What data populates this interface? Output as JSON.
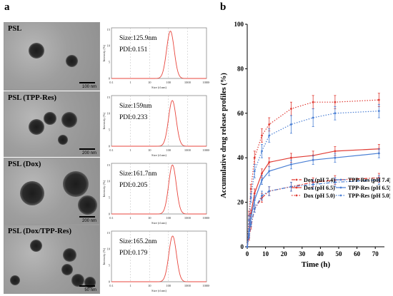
{
  "panel_a_label": "a",
  "panel_b_label": "b",
  "tem_images": [
    {
      "label": "PSL",
      "scale_bar": "100 nm"
    },
    {
      "label": "PSL (TPP-Res)",
      "scale_bar": "200 nm"
    },
    {
      "label": "PSL (Dox)",
      "scale_bar": "200 nm"
    },
    {
      "label": "PSL (Dox/TPP-Res)",
      "scale_bar": "50 nm"
    }
  ],
  "dls_common": {
    "ylabel": "Intensity (%)",
    "xlabel": "Size (d.nm)",
    "xticks": [
      "0.1",
      "1",
      "10",
      "100",
      "1000",
      "10000"
    ],
    "yticks": [
      "0",
      "5",
      "10",
      "15"
    ],
    "line_color": "#e8453c"
  },
  "chart_data": [
    {
      "type": "line",
      "size_text": "Size:125.9nm",
      "pdi_text": "PDI:0.151",
      "x_log": true,
      "peak_x": 125.9,
      "peak_y": 14.5,
      "log_sigma": 0.2,
      "ylim": [
        0,
        15.5
      ],
      "xlim": [
        0.1,
        10000
      ]
    },
    {
      "type": "line",
      "size_text": "Size:159nm",
      "pdi_text": "PDI:0.233",
      "x_log": true,
      "peak_x": 159,
      "peak_y": 14.0,
      "log_sigma": 0.2,
      "ylim": [
        0,
        15.5
      ],
      "xlim": [
        0.1,
        10000
      ]
    },
    {
      "type": "line",
      "size_text": "Size:161.7nm",
      "pdi_text": "PDI:0.205",
      "x_log": true,
      "peak_x": 161.7,
      "peak_y": 15.0,
      "log_sigma": 0.2,
      "ylim": [
        0,
        15.5
      ],
      "xlim": [
        0.1,
        10000
      ]
    },
    {
      "type": "line",
      "size_text": "Size:165.2nm",
      "pdi_text": "PDI:0.179",
      "x_log": true,
      "peak_x": 165.2,
      "peak_y": 14.0,
      "log_sigma": 0.2,
      "ylim": [
        0,
        15.5
      ],
      "xlim": [
        0.1,
        10000
      ]
    },
    {
      "type": "line",
      "xlabel": "Time (h)",
      "ylabel": "Accumulative drug release profiles (%)",
      "xlim": [
        0,
        75
      ],
      "ylim": [
        0,
        100
      ],
      "xticks": [
        0,
        10,
        20,
        30,
        40,
        50,
        60,
        70
      ],
      "yticks": [
        0,
        20,
        40,
        60,
        80,
        100
      ],
      "legend_position": "bottom-right",
      "x": [
        0,
        1,
        2,
        4,
        8,
        12,
        24,
        36,
        48,
        72
      ],
      "series": [
        {
          "name": "Dox (pH 7.4)",
          "color": "#e03a33",
          "dash": "dashdot",
          "values": [
            0,
            4,
            9,
            17,
            22,
            25,
            27,
            29,
            30,
            31
          ],
          "error": [
            0,
            1,
            1,
            1.5,
            2,
            2,
            2,
            2,
            2,
            2
          ]
        },
        {
          "name": "Dox (pH 6.5)",
          "color": "#e03a33",
          "dash": "solid",
          "values": [
            0,
            8,
            15,
            24,
            33,
            38,
            40,
            41,
            43,
            44
          ],
          "error": [
            0,
            1,
            1.5,
            2,
            2,
            2,
            2,
            2,
            2,
            2
          ]
        },
        {
          "name": "Dox (pH 5.0)",
          "color": "#e03a33",
          "dash": "dotted",
          "values": [
            0,
            14,
            26,
            40,
            50,
            55,
            62,
            65,
            65,
            66
          ],
          "error": [
            0,
            2,
            2,
            3,
            3,
            3,
            3,
            3,
            3,
            3
          ]
        },
        {
          "name": "TPP-Res (pH 7.4)",
          "color": "#4a7fd4",
          "dash": "dashdot",
          "values": [
            0,
            5,
            10,
            17,
            23,
            25,
            27,
            28,
            29,
            30
          ],
          "error": [
            0,
            1,
            1,
            1.5,
            2,
            2,
            2,
            2,
            2,
            2
          ]
        },
        {
          "name": "TPP-Res (pH 6.5)",
          "color": "#4a7fd4",
          "dash": "solid",
          "values": [
            0,
            7,
            13,
            21,
            30,
            34,
            37,
            39,
            40,
            42
          ],
          "error": [
            0,
            1,
            1.5,
            2,
            2,
            2,
            2,
            2,
            2,
            2
          ]
        },
        {
          "name": "TPP-Res (pH 5.0)",
          "color": "#4a7fd4",
          "dash": "dotted",
          "values": [
            0,
            12,
            22,
            34,
            43,
            50,
            55,
            58,
            60,
            61
          ],
          "error": [
            0,
            2,
            2,
            3,
            3,
            3,
            4,
            4,
            3,
            3
          ]
        }
      ]
    }
  ]
}
